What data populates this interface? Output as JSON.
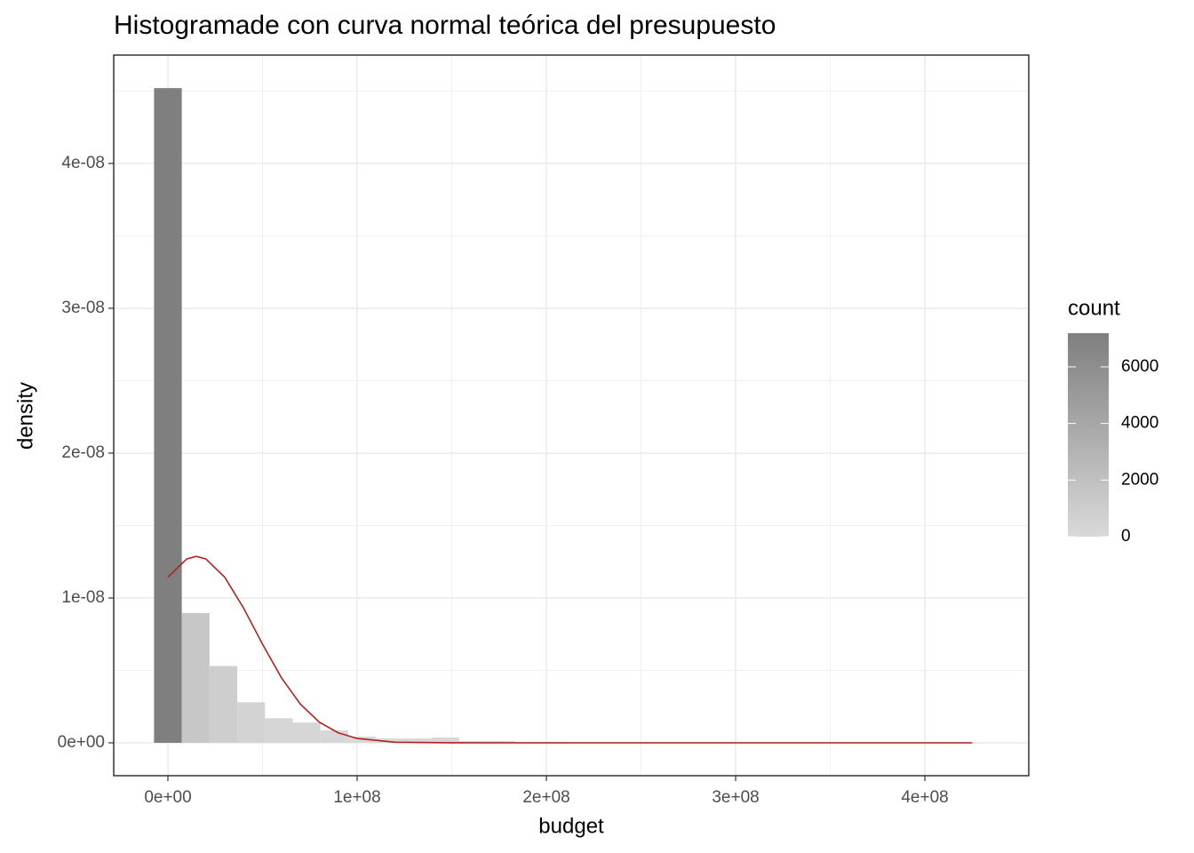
{
  "chart_data": {
    "type": "histogram",
    "title": "Histogramade con curva normal teórica del presupuesto",
    "x_label": "budget",
    "y_label": "density",
    "bins": [
      -7330000,
      7330000,
      21990000,
      36650000,
      51310000,
      65970000,
      80630000,
      95290000,
      109950000,
      124610000,
      139270000,
      153930000,
      168590000,
      183250000,
      197910000,
      212570000,
      227230000,
      241890000,
      256550000,
      271210000,
      285870000,
      300530000,
      315190000,
      329850000,
      344510000,
      359170000,
      373830000,
      388490000,
      403150000,
      417810000,
      432470000
    ],
    "values": [
      4.52e-08,
      8.96e-09,
      5.3e-09,
      2.8e-09,
      1.7e-09,
      1.4e-09,
      8.6e-10,
      4.3e-10,
      3e-10,
      3e-10,
      3.7e-10,
      1.2e-10,
      1.2e-10,
      6e-11,
      6e-11,
      2e-11,
      2e-11,
      1e-11,
      1e-11,
      0,
      0,
      0,
      0,
      0,
      0,
      0,
      0,
      0,
      0,
      1e-11
    ],
    "fill_low": "#d9d9d9",
    "fill_high": "#7f7f7f",
    "curve": {
      "color": "#b22222",
      "x": [
        0,
        10000000,
        15000000,
        20000000,
        30000000,
        40000000,
        50000000,
        60000000,
        70000000,
        80000000,
        90000000,
        100000000,
        120000000,
        150000000,
        200000000,
        425000000
      ],
      "values": [
        1.144e-08,
        1.27e-08,
        1.287e-08,
        1.27e-08,
        1.144e-08,
        9.3e-09,
        6.81e-09,
        4.49e-09,
        2.67e-09,
        1.43e-09,
        6.9e-10,
        3e-10,
        4.2e-11,
        1e-12,
        0,
        0
      ]
    },
    "xlim": [
      -28640000,
      454900000
    ],
    "ylim": [
      -2.27e-09,
      4.748e-08
    ],
    "xticks": [
      {
        "value": 0,
        "label": "0e+00"
      },
      {
        "value": 100000000,
        "label": "1e+08"
      },
      {
        "value": 200000000,
        "label": "2e+08"
      },
      {
        "value": 300000000,
        "label": "3e+08"
      },
      {
        "value": 400000000,
        "label": "4e+08"
      }
    ],
    "yticks": [
      {
        "value": 0,
        "label": "0e+00"
      },
      {
        "value": 1e-08,
        "label": "1e-08"
      },
      {
        "value": 2e-08,
        "label": "2e-08"
      },
      {
        "value": 3e-08,
        "label": "3e-08"
      },
      {
        "value": 4e-08,
        "label": "4e-08"
      }
    ],
    "x_minor_grid": [
      50000000,
      150000000,
      250000000,
      350000000
    ],
    "y_minor_grid": [
      5e-09,
      1.5e-08,
      2.5e-08,
      3.5e-08,
      4.5e-08
    ],
    "grid": true,
    "colorbar_title": "count",
    "colorbar_lim": [
      0,
      7190
    ],
    "colorbar_ticks": [
      0,
      2000,
      4000,
      6000
    ]
  }
}
